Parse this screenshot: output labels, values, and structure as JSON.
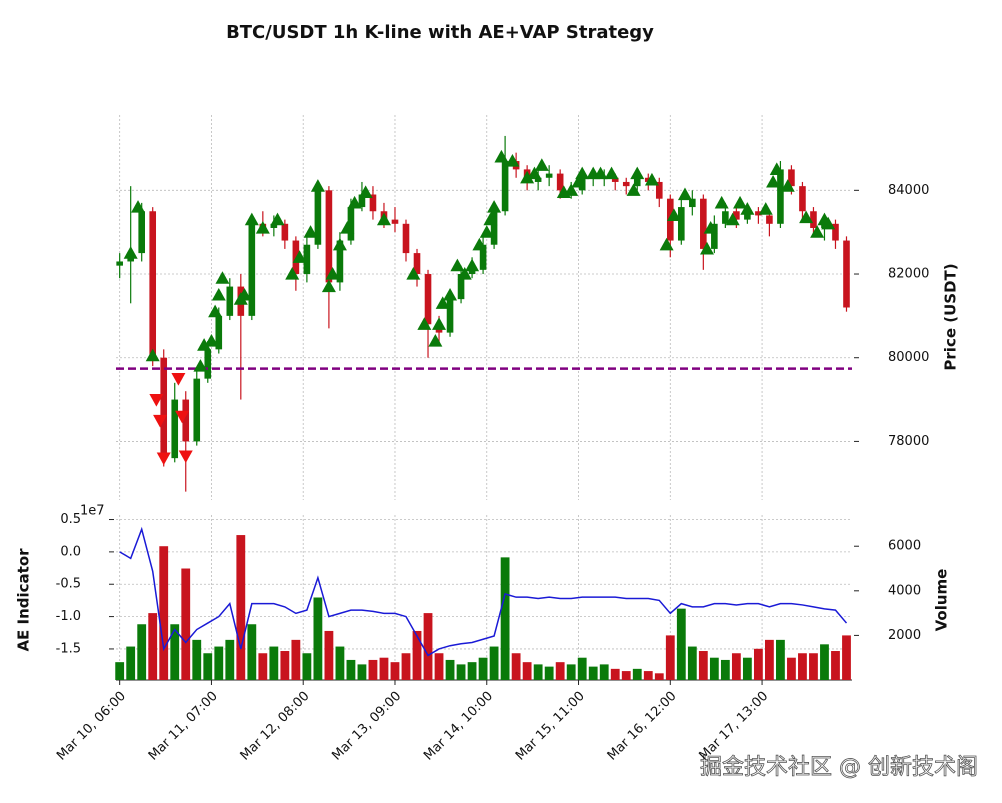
{
  "chart_data": [
    {
      "type": "candlestick",
      "title": "BTC/USDT 1h K-line with AE+VAP Strategy",
      "ylabel": "Price (USDT)",
      "x": [
        0,
        3,
        6,
        9,
        12,
        15,
        18,
        21,
        24,
        27,
        30,
        33,
        36,
        39,
        42,
        45,
        48,
        51,
        54,
        57,
        60,
        63,
        66,
        69,
        72,
        75,
        78,
        81,
        84,
        87,
        90,
        93,
        96,
        99,
        102,
        105,
        108,
        111,
        114,
        117,
        120,
        123,
        126,
        129,
        132,
        135,
        138,
        141,
        144,
        147,
        150,
        153,
        156,
        159,
        162,
        165,
        168,
        171,
        174,
        177,
        180,
        183,
        186,
        189,
        192,
        195,
        198
      ],
      "open": [
        82200,
        82300,
        82500,
        83500,
        80000,
        77600,
        79000,
        78000,
        79500,
        80200,
        81000,
        81700,
        81000,
        83200,
        83100,
        83200,
        82800,
        82000,
        82700,
        84000,
        81800,
        82800,
        83600,
        83900,
        83500,
        83300,
        83200,
        82500,
        82000,
        80800,
        80600,
        81400,
        82000,
        82100,
        82700,
        83500,
        84700,
        84500,
        84200,
        84300,
        84400,
        84000,
        84000,
        84300,
        84300,
        84300,
        84200,
        84100,
        84300,
        84200,
        83800,
        82800,
        83600,
        83800,
        82600,
        83200,
        83500,
        83300,
        83500,
        83400,
        83200,
        84500,
        84100,
        83500,
        83100,
        83200,
        82800
      ],
      "high": [
        82500,
        84100,
        83700,
        83600,
        80200,
        79400,
        79200,
        79700,
        80400,
        81200,
        81900,
        82000,
        83400,
        83500,
        83400,
        83300,
        82900,
        82900,
        84200,
        84100,
        83000,
        83800,
        84200,
        84100,
        83700,
        83600,
        83300,
        82600,
        82100,
        81000,
        81600,
        82200,
        82400,
        82900,
        83700,
        85300,
        84900,
        84600,
        84500,
        84600,
        84500,
        84200,
        84500,
        84500,
        84500,
        84400,
        84300,
        84500,
        84400,
        84300,
        83900,
        83800,
        84000,
        83900,
        83400,
        83700,
        83600,
        83700,
        83600,
        83500,
        84700,
        84600,
        84200,
        83600,
        83400,
        83300,
        82900
      ],
      "low": [
        81900,
        81300,
        82300,
        79800,
        77400,
        77500,
        76800,
        77900,
        79400,
        80100,
        80900,
        79000,
        80900,
        82900,
        82900,
        82600,
        81600,
        81800,
        82600,
        80700,
        81600,
        82700,
        83500,
        83300,
        83100,
        83000,
        82300,
        81700,
        80000,
        80300,
        80500,
        81300,
        81900,
        82000,
        82600,
        83400,
        84300,
        84000,
        84000,
        84100,
        83800,
        83800,
        83900,
        84100,
        84100,
        84000,
        83900,
        84000,
        84000,
        83600,
        82400,
        82700,
        83400,
        82100,
        82500,
        83100,
        83100,
        83200,
        83200,
        82900,
        83100,
        83900,
        83300,
        82900,
        82800,
        82600,
        81100
      ],
      "close": [
        82300,
        82500,
        83500,
        80000,
        77600,
        79000,
        78000,
        79500,
        80200,
        81000,
        81700,
        81000,
        83200,
        83100,
        83200,
        82800,
        82000,
        82700,
        84000,
        81800,
        82800,
        83600,
        83900,
        83500,
        83300,
        83200,
        82500,
        82000,
        80800,
        80600,
        81400,
        82000,
        82100,
        82700,
        83500,
        84700,
        84500,
        84200,
        84300,
        84400,
        84000,
        84000,
        84300,
        84300,
        84300,
        84200,
        84100,
        84300,
        84200,
        83800,
        82800,
        83600,
        83800,
        82600,
        83200,
        83500,
        83300,
        83500,
        83400,
        83200,
        84500,
        84100,
        83500,
        83100,
        83200,
        82800,
        81200
      ],
      "up_color": "#0a7a0a",
      "down_color": "#c8141e",
      "xlim": [
        -1,
        199.5
      ],
      "ylim": [
        76600,
        85800
      ],
      "yticks": [
        78000,
        80000,
        82000,
        84000
      ],
      "grid": true,
      "hline": {
        "value": 79740,
        "color": "#800080"
      },
      "buy_signals": {
        "color": "#0a7a0a",
        "x": [
          3,
          5,
          9,
          22,
          23,
          25,
          26,
          27,
          28,
          33,
          34,
          36,
          39,
          43,
          47,
          49,
          52,
          54,
          57,
          58,
          60,
          62,
          64,
          67,
          72,
          80,
          83,
          86,
          87,
          88,
          90,
          92,
          94,
          96,
          98,
          100,
          101,
          102,
          104,
          107,
          111,
          113,
          115,
          121,
          123,
          125,
          126,
          129,
          131,
          134,
          140,
          141,
          145,
          149,
          151,
          154,
          160,
          161,
          164,
          167,
          169,
          171,
          176,
          178,
          179,
          182,
          187,
          190,
          192,
          193
        ],
        "y": [
          82500,
          83600,
          80050,
          79800,
          80300,
          80400,
          81100,
          81500,
          81900,
          81400,
          81500,
          83300,
          83100,
          83300,
          82000,
          82400,
          83000,
          84100,
          81700,
          82000,
          82700,
          83100,
          83700,
          83950,
          83300,
          82000,
          80800,
          80400,
          80800,
          81300,
          81500,
          82200,
          82000,
          82200,
          82700,
          83000,
          83300,
          83600,
          84800,
          84700,
          84300,
          84400,
          84600,
          83950,
          84000,
          84200,
          84400,
          84400,
          84400,
          84400,
          84000,
          84400,
          84250,
          82700,
          83400,
          83900,
          82600,
          83100,
          83700,
          83300,
          83700,
          83550,
          83550,
          84200,
          84500,
          84100,
          83350,
          83000,
          83300,
          83200
        ]
      },
      "sell_signals": {
        "color": "#ee1111",
        "x": [
          10,
          11,
          12,
          16,
          17,
          18
        ],
        "y": [
          79000,
          78500,
          77600,
          79500,
          78600,
          77650
        ]
      }
    },
    {
      "type": "bar_line",
      "ylabel": "AE Indicator",
      "y2label": "Volume",
      "offset_label": "1e7",
      "xticks": [
        {
          "value": 0,
          "label": "Mar 10, 06:00"
        },
        {
          "value": 25,
          "label": "Mar 11, 07:00"
        },
        {
          "value": 50,
          "label": "Mar 12, 08:00"
        },
        {
          "value": 75,
          "label": "Mar 13, 09:00"
        },
        {
          "value": 100,
          "label": "Mar 14, 10:00"
        },
        {
          "value": 125,
          "label": "Mar 15, 11:00"
        },
        {
          "value": 150,
          "label": "Mar 16, 12:00"
        },
        {
          "value": 175,
          "label": "Mar 17, 13:00"
        }
      ],
      "ylim": [
        -1.98,
        0.57
      ],
      "yticks": [
        0.5,
        {
          "value": 0.0,
          "label": "0.0"
        },
        -0.5,
        {
          "value": -1.0,
          "label": "-1.0"
        },
        -1.5
      ],
      "y2lim": [
        0,
        7400
      ],
      "y2ticks": [
        2000,
        4000,
        6000
      ],
      "grid": true,
      "series": [
        {
          "type": "line",
          "color": "#1a1ad6",
          "values": [
            0.0,
            -0.1,
            0.35,
            -0.3,
            -1.5,
            -1.2,
            -1.4,
            -1.2,
            -1.1,
            -1.0,
            -0.8,
            -1.5,
            -0.8,
            -0.8,
            -0.8,
            -0.85,
            -0.95,
            -0.9,
            -0.4,
            -1.0,
            -0.95,
            -0.9,
            -0.9,
            -0.92,
            -0.95,
            -0.95,
            -1.0,
            -1.3,
            -1.6,
            -1.5,
            -1.45,
            -1.42,
            -1.4,
            -1.35,
            -1.3,
            -0.65,
            -0.7,
            -0.7,
            -0.72,
            -0.7,
            -0.72,
            -0.72,
            -0.7,
            -0.7,
            -0.7,
            -0.7,
            -0.72,
            -0.72,
            -0.72,
            -0.75,
            -0.95,
            -0.8,
            -0.85,
            -0.85,
            -0.8,
            -0.8,
            -0.82,
            -0.8,
            -0.8,
            -0.85,
            -0.8,
            -0.8,
            -0.82,
            -0.85,
            -0.88,
            -0.9,
            -1.1
          ]
        },
        {
          "type": "bar",
          "axis": "y2",
          "values": [
            800,
            1500,
            2500,
            3000,
            6000,
            2500,
            5000,
            1800,
            1200,
            1500,
            1800,
            6500,
            2500,
            1200,
            1500,
            1300,
            1800,
            1200,
            3700,
            2200,
            1500,
            900,
            700,
            900,
            1000,
            800,
            1200,
            2200,
            3000,
            1200,
            900,
            700,
            800,
            1000,
            1500,
            5500,
            1200,
            800,
            700,
            600,
            800,
            700,
            1000,
            600,
            700,
            500,
            400,
            500,
            400,
            300,
            2000,
            3200,
            1500,
            1300,
            1000,
            900,
            1200,
            1000,
            1400,
            1800,
            1800,
            1000,
            1200,
            1200,
            1600,
            1300,
            2000
          ]
        }
      ]
    }
  ],
  "watermark": "掘金技术社区 @ 创新技术阁"
}
